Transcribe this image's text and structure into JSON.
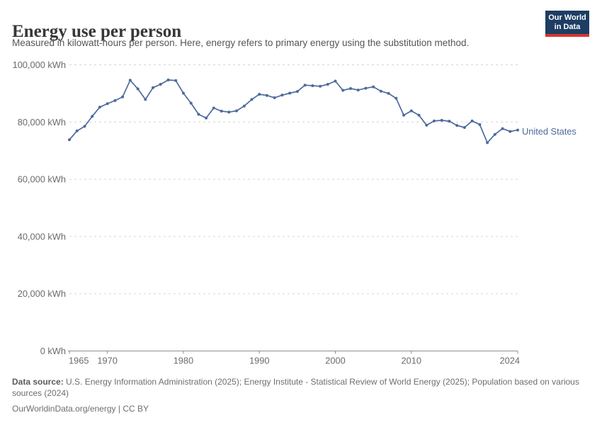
{
  "header": {
    "title": "Energy use per person",
    "subtitle": "Measured in kilowatt-hours per person. Here, energy refers to primary energy using the substitution method.",
    "logo": {
      "line1": "Our World",
      "line2": "in Data",
      "bg_color": "#1d3d63",
      "stripe_color": "#d8352e"
    }
  },
  "chart_data": {
    "type": "line",
    "title": "Energy use per person",
    "unit": "kWh",
    "xlabel": "",
    "ylabel": "",
    "xlim": [
      1965,
      2024
    ],
    "ylim": [
      0,
      100000
    ],
    "grid": "dashed-horizontal",
    "grid_color": "#d5d5d5",
    "axis_color": "#8f8f8f",
    "tick_label_color": "#6b6b6b",
    "yticks": [
      0,
      20000,
      40000,
      60000,
      80000,
      100000
    ],
    "ytick_labels": [
      "0 kWh",
      "20,000 kWh",
      "40,000 kWh",
      "60,000 kWh",
      "80,000 kWh",
      "100,000 kWh"
    ],
    "xticks": [
      1965,
      1970,
      1980,
      1990,
      2000,
      2010,
      2024
    ],
    "xtick_labels": [
      "1965",
      "1970",
      "1980",
      "1990",
      "2000",
      "2010",
      "2024"
    ],
    "legend_position": "end-of-line-label",
    "series": [
      {
        "name": "United States",
        "color": "#4c6a9c",
        "years": [
          1965,
          1966,
          1967,
          1968,
          1969,
          1970,
          1971,
          1972,
          1973,
          1974,
          1975,
          1976,
          1977,
          1978,
          1979,
          1980,
          1981,
          1982,
          1983,
          1984,
          1985,
          1986,
          1987,
          1988,
          1989,
          1990,
          1991,
          1992,
          1993,
          1994,
          1995,
          1996,
          1997,
          1998,
          1999,
          2000,
          2001,
          2002,
          2003,
          2004,
          2005,
          2006,
          2007,
          2008,
          2009,
          2010,
          2011,
          2012,
          2013,
          2014,
          2015,
          2016,
          2017,
          2018,
          2019,
          2020,
          2021,
          2022,
          2023,
          2024
        ],
        "values": [
          73800,
          76900,
          78500,
          82000,
          85200,
          86400,
          87500,
          88800,
          94600,
          91600,
          87900,
          92000,
          93200,
          94700,
          94500,
          90100,
          86600,
          82700,
          81400,
          84900,
          83800,
          83500,
          83900,
          85600,
          87900,
          89700,
          89300,
          88500,
          89400,
          90100,
          90700,
          92900,
          92700,
          92500,
          93200,
          94300,
          91100,
          91700,
          91200,
          91800,
          92300,
          90800,
          90000,
          88300,
          82400,
          83900,
          82400,
          78900,
          80400,
          80600,
          80300,
          78800,
          78100,
          80400,
          79100,
          72800,
          75700,
          77700,
          76700,
          77200
        ]
      }
    ]
  },
  "footer": {
    "source_label": "Data source:",
    "sources": "U.S. Energy Information Administration (2025); Energy Institute - Statistical Review of World Energy (2025); Population based on various sources (2024)",
    "site": "OurWorldinData.org/energy",
    "divider": "|",
    "license": "CC BY"
  }
}
